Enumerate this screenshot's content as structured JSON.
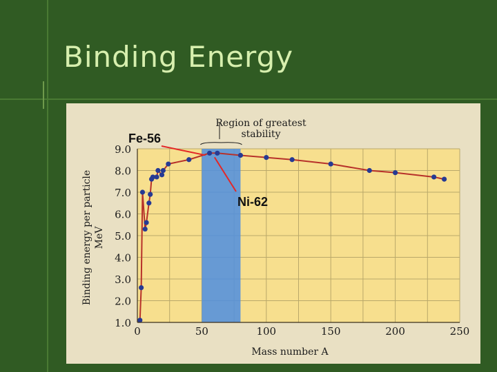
{
  "slide": {
    "title": "Binding Energy"
  },
  "annotations": {
    "fe_label": "Fe-56",
    "ni_label": "Ni-62",
    "region_label_line1": "Region of greatest",
    "region_label_line2": "stability"
  },
  "colors": {
    "background": "#305b23",
    "title": "#d7efae",
    "plot_background": "#f7df8e",
    "gridline": "#b9a86a",
    "stability_band": "#4d8ee0",
    "curve": "#b7312a",
    "points": "#263a93",
    "arrows": "#e32727"
  },
  "chart_data": {
    "type": "scatter",
    "title": "",
    "xlabel": "Mass number A",
    "ylabel": "Binding energy per particle, MeV",
    "xlim": [
      0,
      250
    ],
    "ylim": [
      1.0,
      9.0
    ],
    "x_ticks": [
      0,
      50,
      100,
      150,
      200,
      250
    ],
    "y_ticks": [
      1.0,
      2.0,
      3.0,
      4.0,
      5.0,
      6.0,
      7.0,
      8.0,
      9.0
    ],
    "grid": true,
    "shaded_region": {
      "x_start": 50,
      "x_end": 80,
      "label": "Region of greatest stability"
    },
    "series": [
      {
        "name": "",
        "points": [
          {
            "x": 2,
            "y": 1.1
          },
          {
            "x": 3,
            "y": 2.6
          },
          {
            "x": 4,
            "y": 7.0
          },
          {
            "x": 6,
            "y": 5.3
          },
          {
            "x": 7,
            "y": 5.6
          },
          {
            "x": 9,
            "y": 6.5
          },
          {
            "x": 10,
            "y": 6.9
          },
          {
            "x": 11,
            "y": 7.6
          },
          {
            "x": 12,
            "y": 7.7
          },
          {
            "x": 15,
            "y": 7.7
          },
          {
            "x": 16,
            "y": 8.0
          },
          {
            "x": 19,
            "y": 7.8
          },
          {
            "x": 20,
            "y": 8.0
          },
          {
            "x": 24,
            "y": 8.3
          },
          {
            "x": 40,
            "y": 8.5
          },
          {
            "x": 56,
            "y": 8.8
          },
          {
            "x": 62,
            "y": 8.8
          },
          {
            "x": 80,
            "y": 8.7
          },
          {
            "x": 100,
            "y": 8.6
          },
          {
            "x": 120,
            "y": 8.5
          },
          {
            "x": 150,
            "y": 8.3
          },
          {
            "x": 180,
            "y": 8.0
          },
          {
            "x": 200,
            "y": 7.9
          },
          {
            "x": 230,
            "y": 7.7
          },
          {
            "x": 238,
            "y": 7.6
          }
        ]
      }
    ]
  }
}
